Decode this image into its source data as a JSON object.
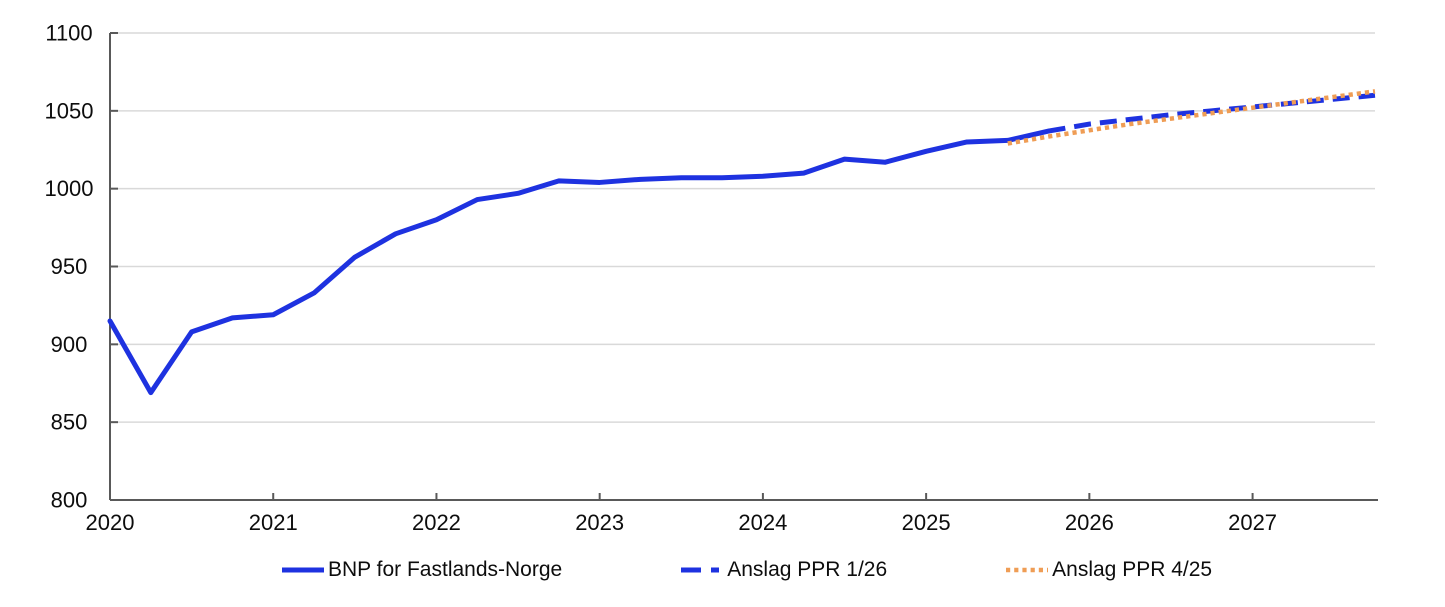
{
  "chart_data": {
    "type": "line",
    "title": "",
    "xlabel": "",
    "ylabel": "",
    "xlim": [
      2020,
      2027.75
    ],
    "ylim": [
      800,
      1100
    ],
    "x_ticks": [
      2020,
      2021,
      2022,
      2023,
      2024,
      2025,
      2026,
      2027
    ],
    "y_ticks": [
      800,
      850,
      900,
      950,
      1000,
      1050,
      1100
    ],
    "grid": "horizontal",
    "legend_position": "bottom",
    "colors": {
      "axis": "#595959",
      "gridline": "#D9D9D9",
      "text": "#0d0d0d",
      "blue": "#1E32E0",
      "orange": "#EF9D55"
    },
    "series": [
      {
        "name": "BNP for Fastlands-Norge",
        "style": "solid",
        "color": "#1E32E0",
        "x": [
          2020.0,
          2020.25,
          2020.5,
          2020.75,
          2021.0,
          2021.25,
          2021.5,
          2021.75,
          2022.0,
          2022.25,
          2022.5,
          2022.75,
          2023.0,
          2023.25,
          2023.5,
          2023.75,
          2024.0,
          2024.25,
          2024.5,
          2024.75,
          2025.0,
          2025.25,
          2025.5,
          2025.75
        ],
        "values": [
          915,
          869,
          908,
          917,
          919,
          933,
          956,
          971,
          980,
          993,
          997,
          1005,
          1004,
          1006,
          1007,
          1007,
          1008,
          1010,
          1019,
          1017,
          1024,
          1030,
          1031,
          1037
        ]
      },
      {
        "name": "Anslag PPR 1/26",
        "style": "dashed",
        "color": "#1E32E0",
        "x": [
          2025.75,
          2026.0,
          2026.25,
          2026.5,
          2026.75,
          2027.0,
          2027.25,
          2027.5,
          2027.75
        ],
        "values": [
          1037,
          1041.5,
          1044.5,
          1047.5,
          1050,
          1052.5,
          1055,
          1057.5,
          1060
        ]
      },
      {
        "name": "Anslag PPR 4/25",
        "style": "dotted",
        "color": "#EF9D55",
        "x": [
          2025.5,
          2025.75,
          2026.0,
          2026.25,
          2026.5,
          2026.75,
          2027.0,
          2027.25,
          2027.5,
          2027.75
        ],
        "values": [
          1029,
          1033.5,
          1037.5,
          1041.5,
          1045,
          1048.5,
          1052,
          1055.5,
          1059,
          1062.5
        ]
      }
    ]
  }
}
